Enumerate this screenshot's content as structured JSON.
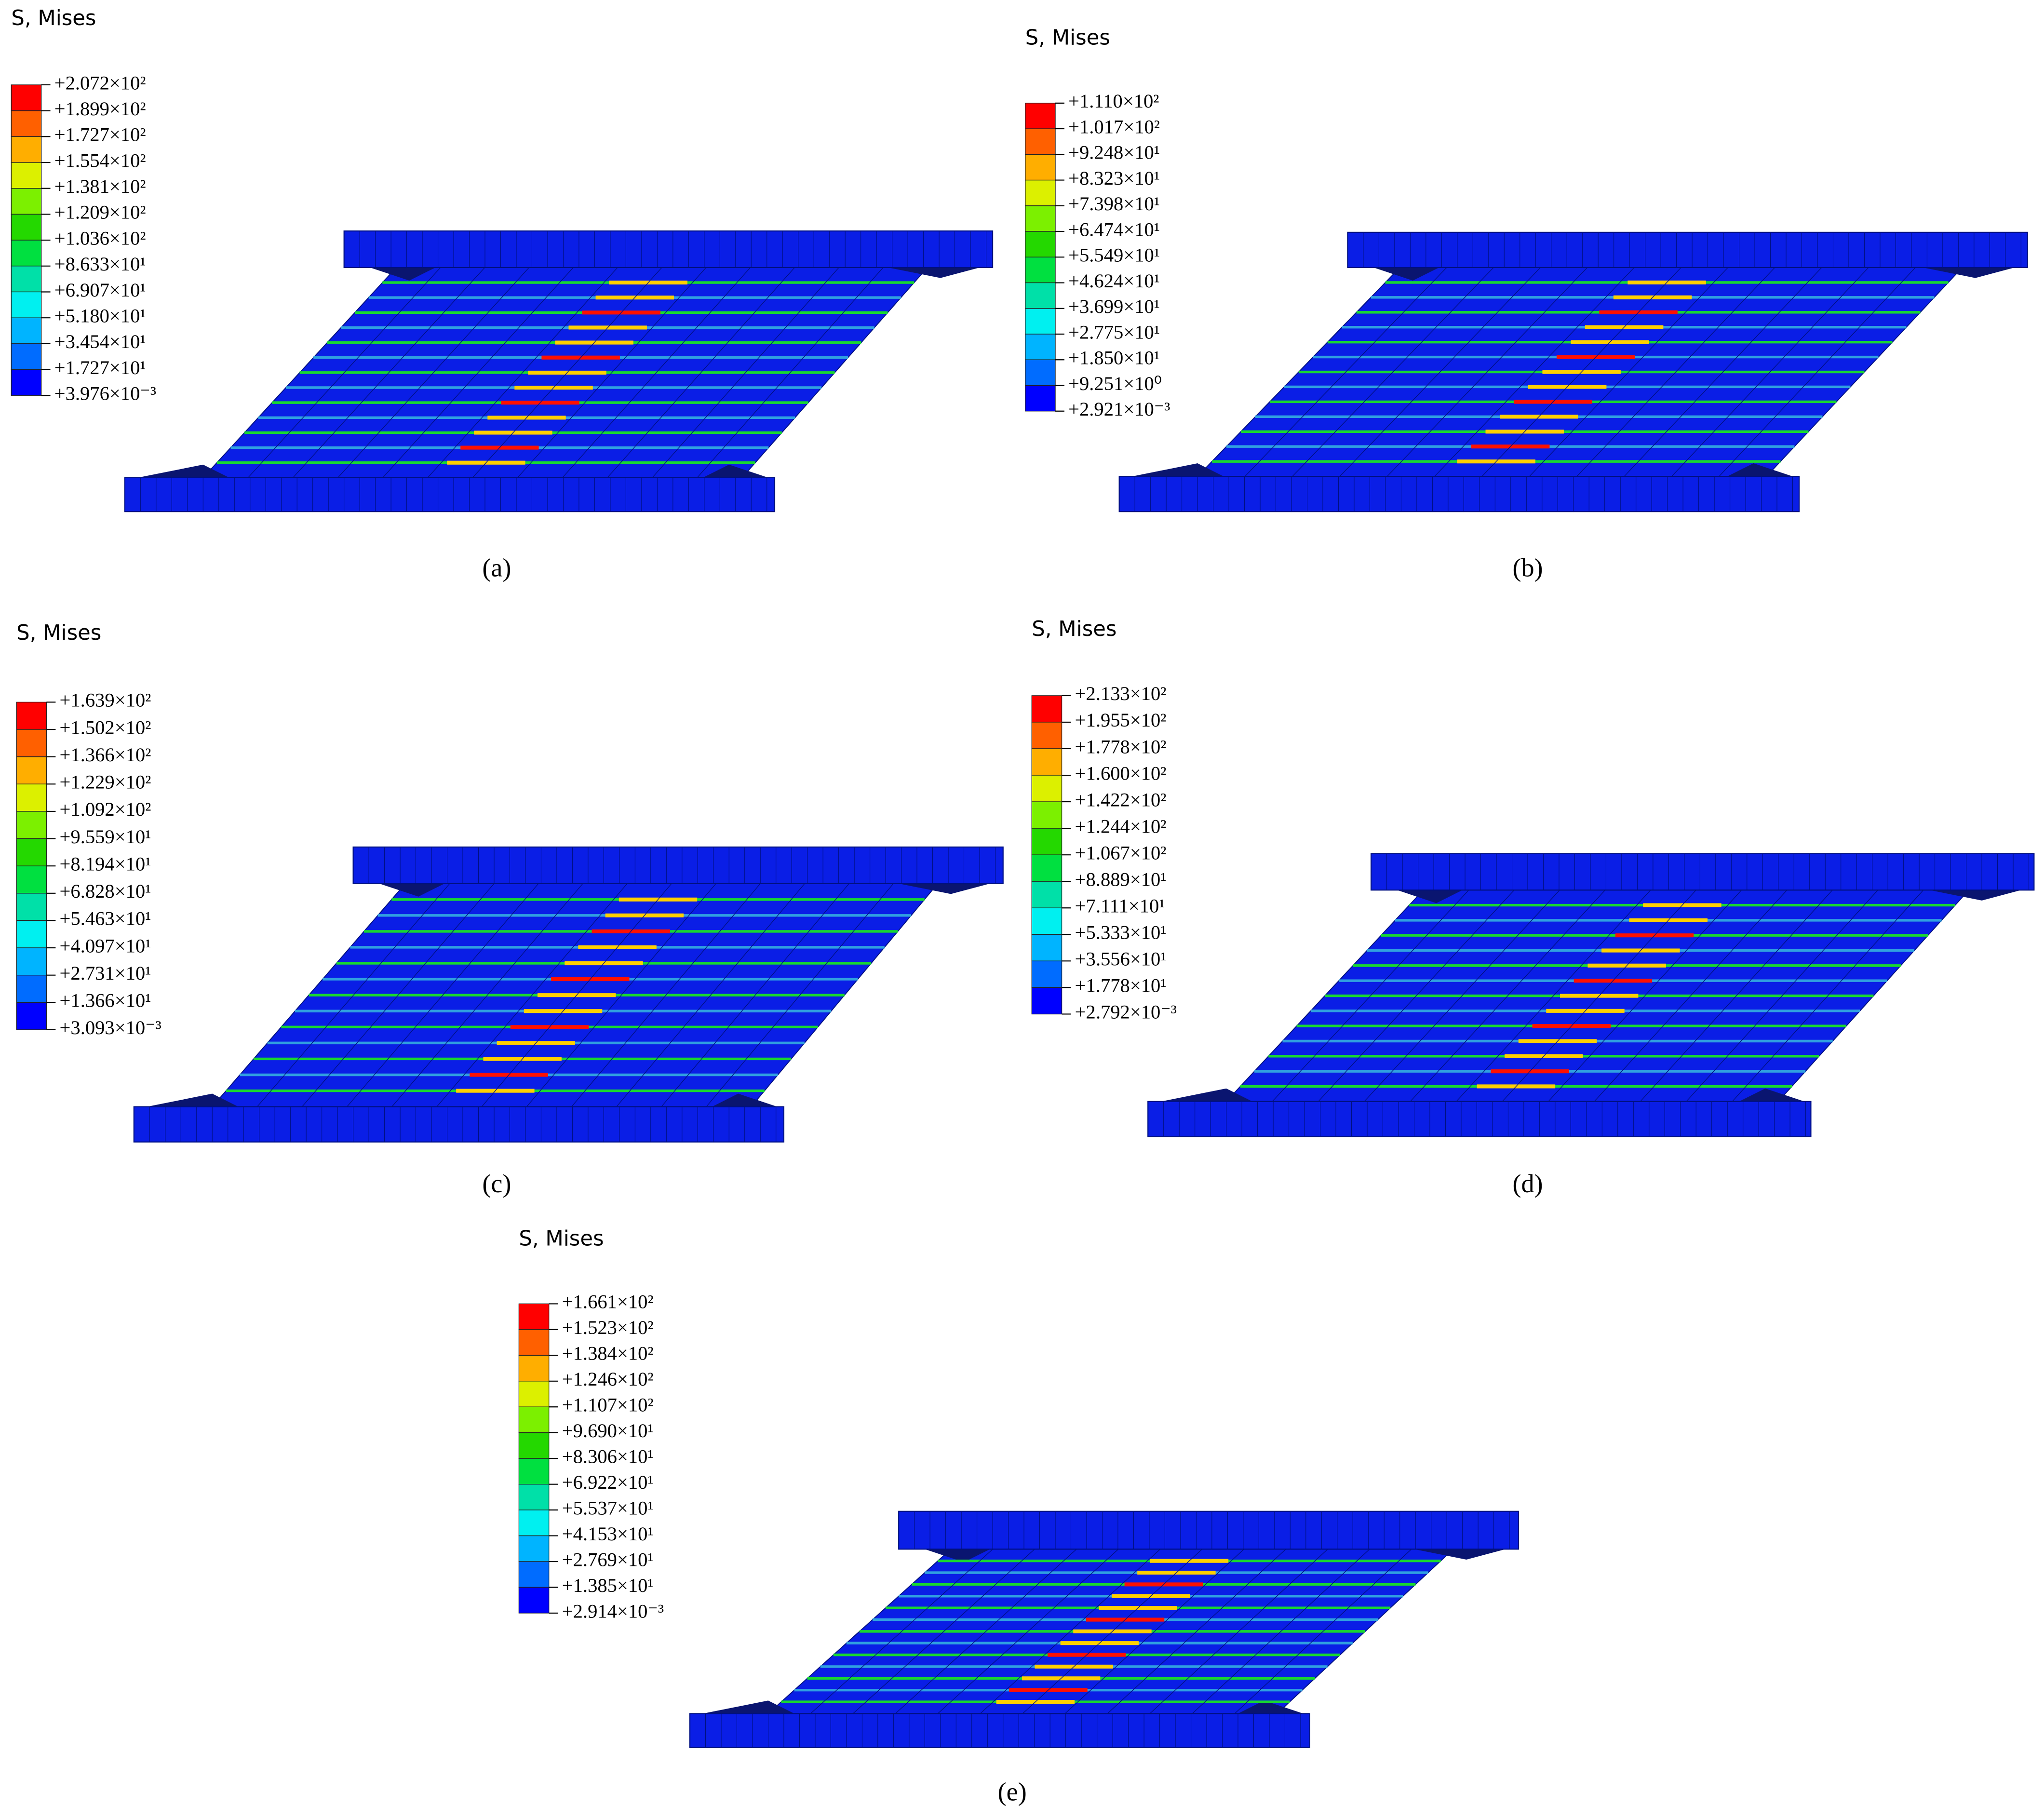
{
  "panels": [
    {
      "title": "S, Mises",
      "caption": "(a)",
      "legend": [
        "+2.072×10²",
        "+1.899×10²",
        "+1.727×10²",
        "+1.554×10²",
        "+1.381×10²",
        "+1.209×10²",
        "+1.036×10²",
        "+8.633×10¹",
        "+6.907×10¹",
        "+5.180×10¹",
        "+3.454×10¹",
        "+1.727×10¹",
        "+3.976×10⁻³"
      ]
    },
    {
      "title": "S, Mises",
      "caption": "(b)",
      "legend": [
        "+1.110×10²",
        "+1.017×10²",
        "+9.248×10¹",
        "+8.323×10¹",
        "+7.398×10¹",
        "+6.474×10¹",
        "+5.549×10¹",
        "+4.624×10¹",
        "+3.699×10¹",
        "+2.775×10¹",
        "+1.850×10¹",
        "+9.251×10⁰",
        "+2.921×10⁻³"
      ]
    },
    {
      "title": "S, Mises",
      "caption": "(c)",
      "legend": [
        "+1.639×10²",
        "+1.502×10²",
        "+1.366×10²",
        "+1.229×10²",
        "+1.092×10²",
        "+9.559×10¹",
        "+8.194×10¹",
        "+6.828×10¹",
        "+5.463×10¹",
        "+4.097×10¹",
        "+2.731×10¹",
        "+1.366×10¹",
        "+3.093×10⁻³"
      ]
    },
    {
      "title": "S, Mises",
      "caption": "(d)",
      "legend": [
        "+2.133×10²",
        "+1.955×10²",
        "+1.778×10²",
        "+1.600×10²",
        "+1.422×10²",
        "+1.244×10²",
        "+1.067×10²",
        "+8.889×10¹",
        "+7.111×10¹",
        "+5.333×10¹",
        "+3.556×10¹",
        "+1.778×10¹",
        "+2.792×10⁻³"
      ]
    },
    {
      "title": "S, Mises",
      "caption": "(e)",
      "legend": [
        "+1.661×10²",
        "+1.523×10²",
        "+1.384×10²",
        "+1.246×10²",
        "+1.107×10²",
        "+9.690×10¹",
        "+8.306×10¹",
        "+6.922×10¹",
        "+5.537×10¹",
        "+4.153×10¹",
        "+2.769×10¹",
        "+1.385×10¹",
        "+2.914×10⁻³"
      ]
    }
  ]
}
